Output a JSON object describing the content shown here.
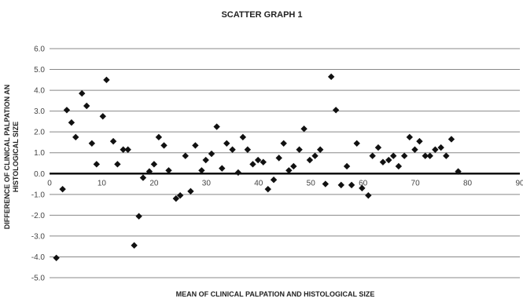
{
  "chart_data": {
    "type": "scatter",
    "title": "SCATTER GRAPH 1",
    "xlabel": "MEAN OF  CLINICAL PALPATION AND HISTOLOGICAL SIZE",
    "ylabel_lines": [
      "DIFFERENCE OF CLINICAL PALPATION AN",
      "HISTOLOGICAL SIZE"
    ],
    "xlim": [
      0,
      90
    ],
    "ylim": [
      -5.0,
      6.0
    ],
    "x_ticks": [
      "0",
      "10",
      "20",
      "30",
      "40",
      "50",
      "60",
      "70",
      "80",
      "90"
    ],
    "y_ticks": [
      "6.0",
      "5.0",
      "4.0",
      "3.0",
      "2.0",
      "1.0",
      "0.0",
      "-1.0",
      "-2.0",
      "-3.0",
      "-4.0",
      "-5.0"
    ],
    "grid": "horizontal",
    "marker": "diamond",
    "marker_color": "#111111",
    "points": [
      [
        1.3,
        -4.05
      ],
      [
        2.5,
        -0.75
      ],
      [
        3.3,
        3.05
      ],
      [
        4.2,
        2.45
      ],
      [
        5.0,
        1.75
      ],
      [
        6.2,
        3.85
      ],
      [
        7.1,
        3.25
      ],
      [
        8.1,
        1.45
      ],
      [
        9.0,
        0.45
      ],
      [
        10.2,
        2.75
      ],
      [
        10.9,
        4.5
      ],
      [
        12.2,
        1.55
      ],
      [
        13.0,
        0.45
      ],
      [
        14.1,
        1.15
      ],
      [
        15.0,
        1.15
      ],
      [
        16.2,
        -3.45
      ],
      [
        17.1,
        -2.05
      ],
      [
        17.9,
        -0.2
      ],
      [
        19.1,
        0.1
      ],
      [
        20.0,
        0.45
      ],
      [
        20.9,
        1.75
      ],
      [
        21.9,
        1.35
      ],
      [
        22.8,
        0.15
      ],
      [
        24.2,
        -1.2
      ],
      [
        25.0,
        -1.05
      ],
      [
        26.0,
        0.85
      ],
      [
        27.0,
        -0.85
      ],
      [
        27.9,
        1.35
      ],
      [
        29.1,
        0.15
      ],
      [
        29.9,
        0.65
      ],
      [
        31.0,
        0.95
      ],
      [
        32.0,
        2.25
      ],
      [
        33.0,
        0.25
      ],
      [
        33.9,
        1.45
      ],
      [
        35.0,
        1.15
      ],
      [
        36.1,
        0.05
      ],
      [
        37.0,
        1.75
      ],
      [
        37.9,
        1.15
      ],
      [
        38.9,
        0.45
      ],
      [
        39.9,
        0.65
      ],
      [
        40.9,
        0.55
      ],
      [
        41.8,
        -0.75
      ],
      [
        42.9,
        -0.3
      ],
      [
        43.9,
        0.75
      ],
      [
        44.8,
        1.45
      ],
      [
        45.8,
        0.15
      ],
      [
        46.7,
        0.35
      ],
      [
        47.8,
        1.15
      ],
      [
        48.7,
        2.15
      ],
      [
        49.8,
        0.65
      ],
      [
        50.8,
        0.85
      ],
      [
        51.8,
        1.15
      ],
      [
        52.8,
        -0.5
      ],
      [
        53.9,
        4.65
      ],
      [
        54.8,
        3.05
      ],
      [
        55.8,
        -0.55
      ],
      [
        56.9,
        0.35
      ],
      [
        57.8,
        -0.55
      ],
      [
        58.8,
        1.45
      ],
      [
        59.8,
        -0.7
      ],
      [
        61.0,
        -1.05
      ],
      [
        61.8,
        0.85
      ],
      [
        62.9,
        1.25
      ],
      [
        63.8,
        0.55
      ],
      [
        64.9,
        0.65
      ],
      [
        65.8,
        0.85
      ],
      [
        66.8,
        0.35
      ],
      [
        67.9,
        0.85
      ],
      [
        68.9,
        1.75
      ],
      [
        69.9,
        1.15
      ],
      [
        70.8,
        1.55
      ],
      [
        71.9,
        0.85
      ],
      [
        72.8,
        0.85
      ],
      [
        73.8,
        1.15
      ],
      [
        74.9,
        1.25
      ],
      [
        75.9,
        0.85
      ],
      [
        76.9,
        1.65
      ],
      [
        78.2,
        0.1
      ]
    ]
  }
}
